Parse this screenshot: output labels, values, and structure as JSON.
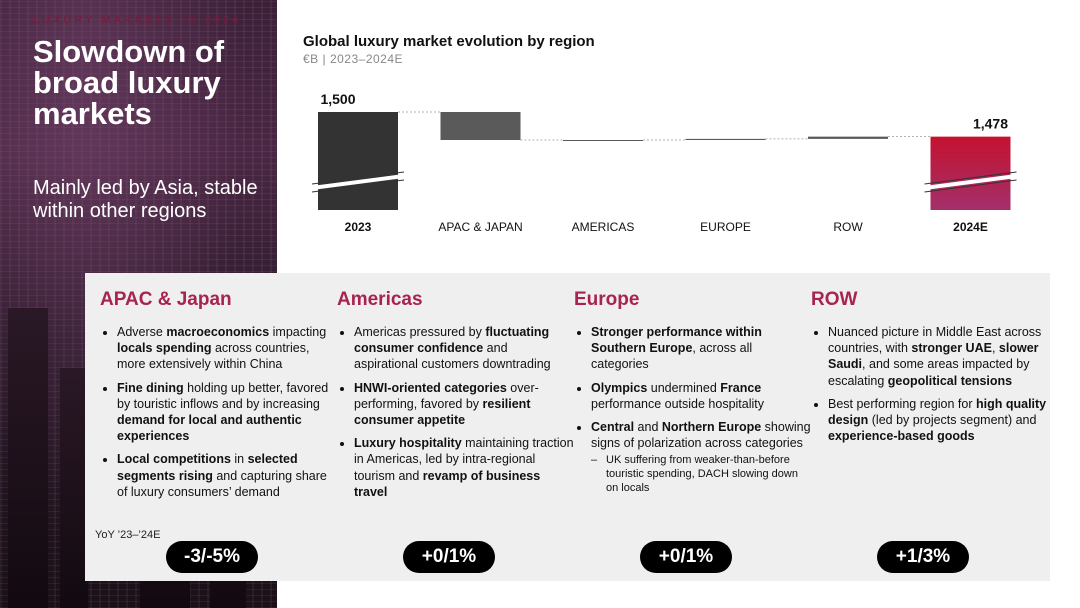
{
  "hero": {
    "kicker": "LUXURY MARKETS IN 2024",
    "title": "Slowdown of broad luxury markets",
    "subtitle": "Mainly led by Asia, stable within other regions"
  },
  "chart_header": {
    "title": "Global luxury market evolution by region",
    "subtitle": "€B | 2023–2024E"
  },
  "chart_data": {
    "type": "bar",
    "subtype": "waterfall",
    "title": "Global luxury market evolution by region",
    "subtitle": "€B | 2023–2024E",
    "categories": [
      "2023",
      "APAC & JAPAN",
      "AMERICAS",
      "EUROPE",
      "ROW",
      "2024E"
    ],
    "values": [
      1500,
      -25,
      0,
      1,
      2,
      1478
    ],
    "data_labels": [
      "1,500",
      "",
      "",
      "",
      "",
      "1,478"
    ],
    "total_categories": [
      "2023",
      "2024E"
    ],
    "axis_break": true,
    "colors": {
      "start": "#333333",
      "change": "#5a5a5a",
      "end_top": "#c4122f",
      "end_bottom": "#a3306b"
    }
  },
  "regions": [
    {
      "name": "APAC & Japan",
      "bullets": [
        {
          "parts": [
            {
              "t": "Adverse "
            },
            {
              "t": "macroeconomics",
              "b": true
            },
            {
              "t": " impacting "
            },
            {
              "t": "locals spending",
              "b": true
            },
            {
              "t": " across countries, more extensively within China"
            }
          ]
        },
        {
          "parts": [
            {
              "t": "Fine dining",
              "b": true
            },
            {
              "t": " holding up better, favored by touristic inflows and by increasing "
            },
            {
              "t": "demand for local and authentic experiences",
              "b": true
            }
          ]
        },
        {
          "parts": [
            {
              "t": "Local competitions",
              "b": true
            },
            {
              "t": " in "
            },
            {
              "t": "selected segments rising",
              "b": true
            },
            {
              "t": " and capturing share of luxury consumers’ demand"
            }
          ]
        }
      ],
      "yoy": "-3/-5%"
    },
    {
      "name": "Americas",
      "bullets": [
        {
          "parts": [
            {
              "t": "Americas pressured by "
            },
            {
              "t": "fluctuating consumer confidence",
              "b": true
            },
            {
              "t": " and aspirational customers downtrading"
            }
          ]
        },
        {
          "parts": [
            {
              "t": "HNWI-oriented categories",
              "b": true
            },
            {
              "t": " over-performing, favored by "
            },
            {
              "t": "resilient consumer appetite",
              "b": true
            }
          ]
        },
        {
          "parts": [
            {
              "t": "Luxury hospitality",
              "b": true
            },
            {
              "t": " maintaining traction in Americas, led by intra-regional tourism and "
            },
            {
              "t": "revamp of business travel",
              "b": true
            }
          ]
        }
      ],
      "yoy": "+0/1%"
    },
    {
      "name": "Europe",
      "bullets": [
        {
          "parts": [
            {
              "t": "Stronger performance within Southern Europe",
              "b": true
            },
            {
              "t": ", across all categories"
            }
          ]
        },
        {
          "parts": [
            {
              "t": "Olympics",
              "b": true
            },
            {
              "t": " undermined "
            },
            {
              "t": "France",
              "b": true
            },
            {
              "t": " performance outside hospitality"
            }
          ]
        },
        {
          "parts": [
            {
              "t": "Central",
              "b": true
            },
            {
              "t": " and "
            },
            {
              "t": "Northern Europe",
              "b": true
            },
            {
              "t": " showing signs of polarization across categories"
            }
          ],
          "sub": [
            "UK suffering from weaker-than-before touristic spending, DACH slowing down on locals"
          ]
        }
      ],
      "yoy": "+0/1%"
    },
    {
      "name": "ROW",
      "bullets": [
        {
          "parts": [
            {
              "t": "Nuanced picture in Middle East across countries, with "
            },
            {
              "t": "stronger UAE",
              "b": true
            },
            {
              "t": ", "
            },
            {
              "t": "slower Saudi",
              "b": true
            },
            {
              "t": ", and some areas impacted by escalating "
            },
            {
              "t": "geopolitical tensions",
              "b": true
            }
          ]
        },
        {
          "parts": [
            {
              "t": "Best performing region for "
            },
            {
              "t": "high quality design",
              "b": true
            },
            {
              "t": " (led by projects segment) and "
            },
            {
              "t": "experience-based goods",
              "b": true
            }
          ]
        }
      ],
      "yoy": "+1/3%"
    }
  ],
  "yoy_label": "YoY ’23–’24E"
}
